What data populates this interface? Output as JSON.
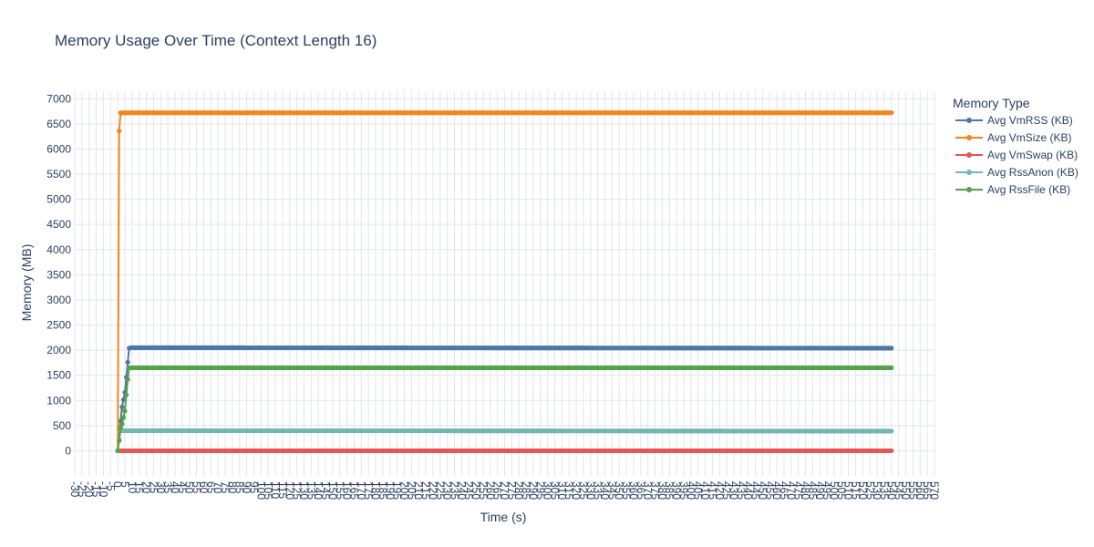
{
  "chart_data": {
    "type": "line",
    "title": "Memory Usage Over Time (Context Length 16)",
    "xlabel": "Time (s)",
    "ylabel": "Memory (MB)",
    "xlim": [
      -30,
      570
    ],
    "ylim": [
      -500,
      7150
    ],
    "x_tick_step": 5,
    "y_ticks": [
      0,
      500,
      1000,
      1500,
      2000,
      2500,
      3000,
      3500,
      4000,
      4500,
      5000,
      5500,
      6000,
      6500,
      7000
    ],
    "grid": true,
    "legend_position": "top-right",
    "legend_title": "Memory Type",
    "series": [
      {
        "name": "Avg VmRSS (KB)",
        "color": "#4c78a8",
        "points": [
          [
            0,
            0
          ],
          [
            1,
            420
          ],
          [
            2,
            590
          ],
          [
            3,
            870
          ],
          [
            5,
            1160
          ],
          [
            6,
            1460
          ],
          [
            7,
            1760
          ],
          [
            8,
            2040
          ],
          [
            10,
            2050
          ],
          [
            540,
            2040
          ]
        ]
      },
      {
        "name": "Avg VmSize (KB)",
        "color": "#f58518",
        "points": [
          [
            0,
            0
          ],
          [
            1,
            6360
          ],
          [
            2,
            6720
          ],
          [
            540,
            6720
          ]
        ]
      },
      {
        "name": "Avg VmSwap (KB)",
        "color": "#e45756",
        "points": [
          [
            0,
            0
          ],
          [
            540,
            0
          ]
        ]
      },
      {
        "name": "Avg RssAnon (KB)",
        "color": "#72b7b2",
        "points": [
          [
            0,
            0
          ],
          [
            1,
            220
          ],
          [
            2,
            400
          ],
          [
            540,
            390
          ]
        ]
      },
      {
        "name": "Avg RssFile (KB)",
        "color": "#54a24b",
        "points": [
          [
            0,
            0
          ],
          [
            1,
            200
          ],
          [
            2,
            460
          ],
          [
            3,
            530
          ],
          [
            5,
            790
          ],
          [
            6,
            1110
          ],
          [
            7,
            1420
          ],
          [
            8,
            1650
          ],
          [
            540,
            1650
          ]
        ]
      }
    ]
  }
}
